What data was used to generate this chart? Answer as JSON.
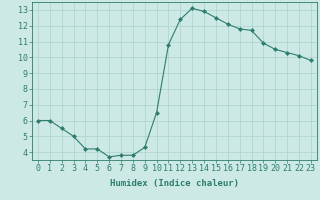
{
  "x": [
    0,
    1,
    2,
    3,
    4,
    5,
    6,
    7,
    8,
    9,
    10,
    11,
    12,
    13,
    14,
    15,
    16,
    17,
    18,
    19,
    20,
    21,
    22,
    23
  ],
  "y": [
    6.0,
    6.0,
    5.5,
    5.0,
    4.2,
    4.2,
    3.7,
    3.8,
    3.8,
    4.3,
    6.5,
    10.8,
    12.4,
    13.1,
    12.9,
    12.5,
    12.1,
    11.8,
    11.7,
    10.9,
    10.5,
    10.3,
    10.1,
    9.8
  ],
  "line_color": "#2e7d6e",
  "marker": "D",
  "marker_size": 2,
  "bg_color": "#cce9e5",
  "grid_color": "#b0d5d0",
  "xlabel": "Humidex (Indice chaleur)",
  "xlim": [
    -0.5,
    23.5
  ],
  "ylim": [
    3.5,
    13.5
  ],
  "yticks": [
    4,
    5,
    6,
    7,
    8,
    9,
    10,
    11,
    12,
    13
  ],
  "xticks": [
    0,
    1,
    2,
    3,
    4,
    5,
    6,
    7,
    8,
    9,
    10,
    11,
    12,
    13,
    14,
    15,
    16,
    17,
    18,
    19,
    20,
    21,
    22,
    23
  ],
  "tick_color": "#2e7d6e",
  "label_fontsize": 6.5,
  "tick_fontsize": 6
}
